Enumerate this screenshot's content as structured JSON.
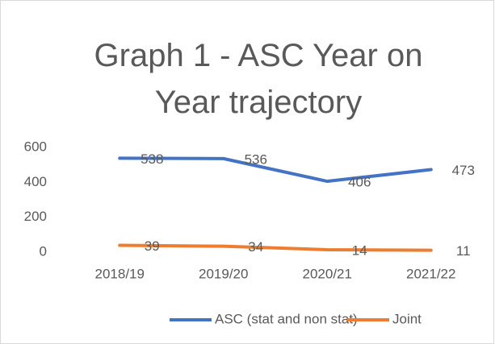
{
  "chart_data": {
    "type": "line",
    "title": "Graph 1 - ASC Year on Year trajectory",
    "categories": [
      "2018/19",
      "2019/20",
      "2020/21",
      "2021/22"
    ],
    "series": [
      {
        "name": "ASC (stat and non stat)",
        "color": "#4472c4",
        "values": [
          538,
          536,
          406,
          473
        ]
      },
      {
        "name": "Joint",
        "color": "#ed7d31",
        "values": [
          39,
          34,
          14,
          11
        ]
      }
    ],
    "ylim": [
      0,
      600
    ],
    "yticks": [
      0,
      200,
      400,
      600
    ],
    "grid": false,
    "legend": "bottom"
  }
}
